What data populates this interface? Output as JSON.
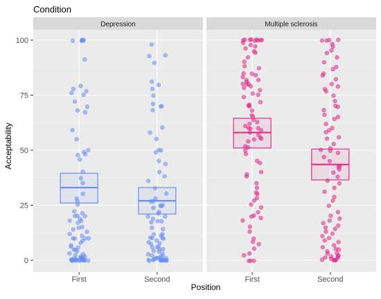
{
  "chart_data": {
    "type": "boxplot",
    "title": "Condition",
    "xlabel": "Position",
    "ylabel": "Acceptability",
    "ylim": [
      0,
      100
    ],
    "yticks": [
      0,
      25,
      50,
      75,
      100
    ],
    "categories": [
      "First",
      "Second"
    ],
    "grid": true,
    "legend": "none",
    "colors": {
      "Depression": "#6a8ff2",
      "Multiple sclerosis": "#e02a87",
      "panel_bg": "#ebebeb",
      "strip_bg": "#d9d9d9"
    },
    "facets": [
      {
        "name": "Depression",
        "boxes": [
          {
            "category": "First",
            "q1": 26,
            "median": 33,
            "q3": 39.5
          },
          {
            "category": "Second",
            "q1": 21,
            "median": 27,
            "q3": 33
          }
        ],
        "points": {
          "First": [
            100,
            100,
            100,
            100,
            100,
            100,
            91,
            79,
            78,
            77,
            76,
            75,
            72,
            70,
            68,
            67,
            59,
            55,
            50,
            49,
            48,
            48,
            46,
            40,
            37,
            35,
            30,
            28,
            27,
            25,
            22,
            21,
            20,
            20,
            20,
            19,
            18,
            18,
            17,
            15,
            15,
            14,
            13,
            12,
            11,
            10,
            10,
            10,
            10,
            9,
            8,
            7,
            6,
            6,
            5,
            5,
            4,
            3,
            3,
            2,
            2,
            2,
            1,
            1,
            1,
            1,
            1,
            1,
            0,
            0,
            0,
            0,
            0,
            0,
            0,
            0,
            0,
            0,
            0,
            0,
            0,
            0,
            0,
            0
          ],
          "Second": [
            98,
            93,
            93,
            90,
            81,
            80,
            78,
            75,
            71,
            70,
            70,
            68,
            60,
            58,
            55,
            50,
            50,
            49,
            45,
            44,
            40,
            38,
            36,
            33,
            30,
            28,
            27,
            27,
            25,
            25,
            25,
            24,
            22,
            21,
            20,
            20,
            19,
            18,
            18,
            17,
            15,
            14,
            12,
            12,
            11,
            10,
            10,
            10,
            10,
            9,
            8,
            8,
            7,
            6,
            6,
            6,
            5,
            5,
            4,
            4,
            3,
            3,
            2,
            2,
            2,
            1,
            1,
            1,
            1,
            1,
            0,
            0,
            0,
            0,
            0,
            0,
            0,
            0,
            0,
            0,
            0,
            0,
            0
          ]
        }
      },
      {
        "name": "Multiple sclerosis",
        "boxes": [
          {
            "category": "First",
            "q1": 51,
            "median": 58,
            "q3": 64.5
          },
          {
            "category": "Second",
            "q1": 36.5,
            "median": 43.5,
            "q3": 50.5
          }
        ],
        "points": {
          "First": [
            100,
            100,
            100,
            100,
            100,
            100,
            100,
            100,
            100,
            99,
            98,
            97,
            96,
            95,
            94,
            92,
            90,
            88,
            87,
            85,
            85,
            84,
            83,
            82,
            82,
            81,
            80,
            80,
            80,
            79,
            78,
            77,
            76,
            75,
            74,
            72,
            71,
            70,
            70,
            68,
            66,
            65,
            64,
            63,
            62,
            61,
            60,
            60,
            60,
            59,
            58,
            57,
            56,
            55,
            55,
            54,
            52,
            51,
            50,
            48,
            45,
            44,
            40,
            39,
            38,
            35,
            33,
            31,
            30,
            28,
            27,
            25,
            24,
            22,
            20,
            20,
            19,
            18,
            15,
            13,
            10,
            8,
            7,
            5,
            3,
            2,
            0,
            0,
            0
          ],
          "Second": [
            100,
            100,
            100,
            100,
            98,
            97,
            95,
            94,
            92,
            90,
            88,
            87,
            85,
            84,
            82,
            80,
            79,
            78,
            77,
            75,
            72,
            70,
            70,
            68,
            66,
            65,
            64,
            62,
            60,
            59,
            58,
            56,
            55,
            53,
            51,
            50,
            50,
            49,
            47,
            45,
            43,
            42,
            41,
            40,
            38,
            36,
            35,
            33,
            31,
            29,
            27,
            25,
            22,
            20,
            19,
            18,
            17,
            16,
            15,
            14,
            13,
            12,
            11,
            10,
            9,
            8,
            7,
            6,
            5,
            5,
            4,
            3,
            3,
            2,
            2,
            2,
            1,
            1,
            1,
            0,
            0,
            0,
            0,
            0
          ]
        }
      }
    ]
  }
}
